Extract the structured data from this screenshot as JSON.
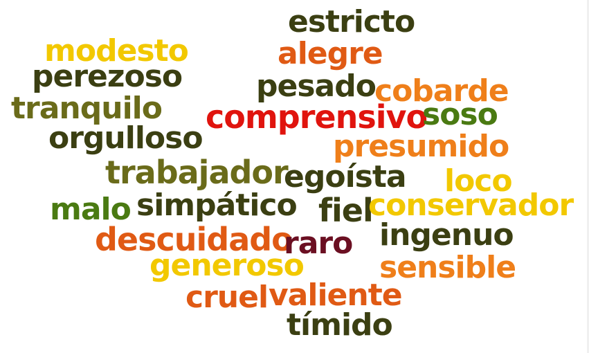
{
  "colors": {
    "dark_olive": "#3b3f12",
    "olive": "#6a6b1a",
    "green": "#4a7a12",
    "yellow": "#f2c800",
    "orange": "#ef7f1a",
    "dark_orange": "#e05a14",
    "red": "#e0140e",
    "maroon": "#6b0f22"
  },
  "words": {
    "estricto": "estricto",
    "modesto": "modesto",
    "alegre": "alegre",
    "perezoso": "perezoso",
    "pesado": "pesado",
    "cobarde": "cobarde",
    "tranquilo": "tranquilo",
    "comprensivo": "comprensivo",
    "soso": "soso",
    "orgulloso": "orgulloso",
    "presumido": "presumido",
    "trabajador": "trabajador",
    "egoista": "egoísta",
    "loco": "loco",
    "malo": "malo",
    "simpatico": "simpático",
    "fiel": "fiel",
    "conservador": "conservador",
    "descuidado": "descuidado",
    "raro": "raro",
    "ingenuo": "ingenuo",
    "generoso": "generoso",
    "sensible": "sensible",
    "cruel": "cruel",
    "valiente": "valiente",
    "timido": "tímido"
  },
  "word_colors": {
    "estricto": "dark_olive",
    "modesto": "yellow",
    "alegre": "dark_orange",
    "perezoso": "dark_olive",
    "pesado": "dark_olive",
    "cobarde": "orange",
    "tranquilo": "olive",
    "comprensivo": "red",
    "soso": "green",
    "orgulloso": "dark_olive",
    "presumido": "orange",
    "trabajador": "olive",
    "egoista": "dark_olive",
    "loco": "yellow",
    "malo": "green",
    "simpatico": "dark_olive",
    "fiel": "dark_olive",
    "conservador": "yellow",
    "descuidado": "dark_orange",
    "raro": "maroon",
    "ingenuo": "dark_olive",
    "generoso": "yellow",
    "sensible": "orange",
    "cruel": "dark_orange",
    "valiente": "dark_orange",
    "timido": "dark_olive"
  }
}
